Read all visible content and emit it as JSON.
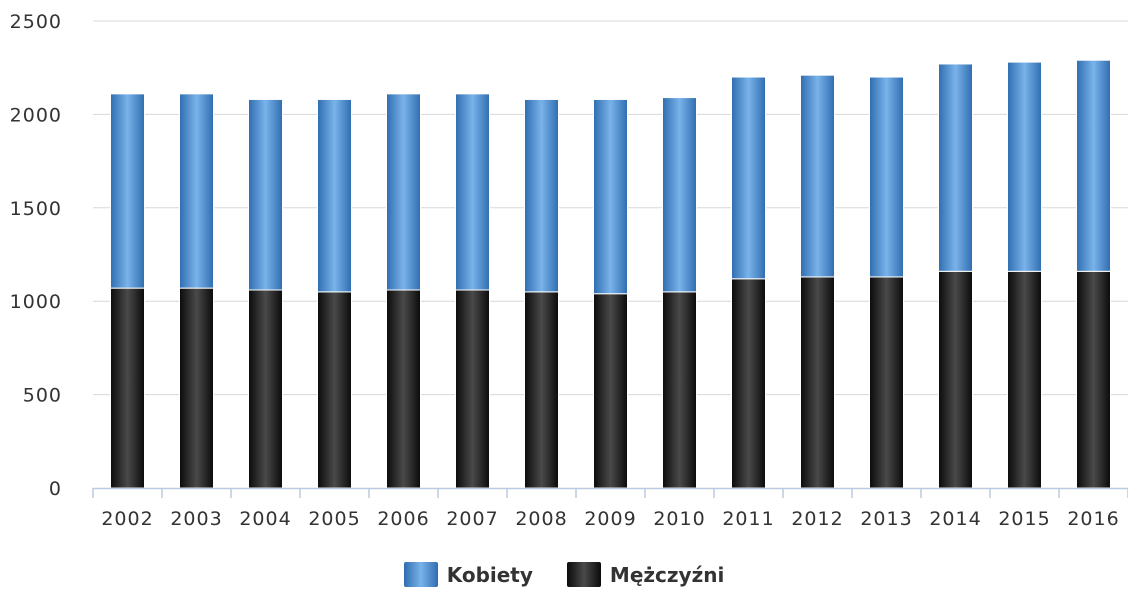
{
  "chart_data": {
    "type": "bar",
    "stacked": true,
    "categories": [
      "2002",
      "2003",
      "2004",
      "2005",
      "2006",
      "2007",
      "2008",
      "2009",
      "2010",
      "2011",
      "2012",
      "2013",
      "2014",
      "2015",
      "2016"
    ],
    "series": [
      {
        "name": "Mężczyźni",
        "color": "#1a1a1a",
        "values": [
          1070,
          1070,
          1060,
          1050,
          1060,
          1060,
          1050,
          1040,
          1050,
          1120,
          1130,
          1130,
          1160,
          1160,
          1160
        ]
      },
      {
        "name": "Kobiety",
        "color": "#4a86c8",
        "values": [
          1040,
          1040,
          1020,
          1030,
          1050,
          1050,
          1030,
          1040,
          1040,
          1080,
          1080,
          1070,
          1110,
          1120,
          1130
        ]
      }
    ],
    "title": "",
    "xlabel": "",
    "ylabel": "",
    "ylim": [
      0,
      2500
    ],
    "yticks": [
      "0",
      "500",
      "1000",
      "1500",
      "2000",
      "2500"
    ],
    "grid": true,
    "legend_position": "bottom-center"
  }
}
